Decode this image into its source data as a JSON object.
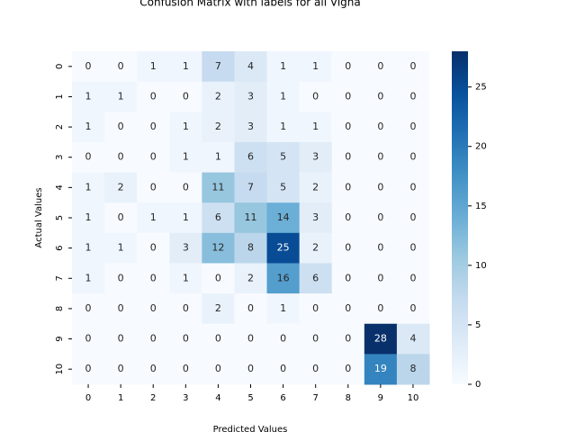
{
  "chart_data": {
    "type": "heatmap",
    "title": "Confusion Matrix with labels for all Vigna",
    "x_label": "Predicted Values",
    "y_label": "Actual Values",
    "x_categories": [
      "0",
      "1",
      "2",
      "3",
      "4",
      "5",
      "6",
      "7",
      "8",
      "9",
      "10"
    ],
    "y_categories": [
      "0",
      "1",
      "2",
      "3",
      "4",
      "5",
      "6",
      "7",
      "8",
      "9",
      "10"
    ],
    "values": [
      [
        0,
        0,
        1,
        1,
        7,
        4,
        1,
        1,
        0,
        0,
        0
      ],
      [
        1,
        1,
        0,
        0,
        2,
        3,
        1,
        0,
        0,
        0,
        0
      ],
      [
        1,
        0,
        0,
        1,
        2,
        3,
        1,
        1,
        0,
        0,
        0
      ],
      [
        0,
        0,
        0,
        1,
        1,
        6,
        5,
        3,
        0,
        0,
        0
      ],
      [
        1,
        2,
        0,
        0,
        11,
        7,
        5,
        2,
        0,
        0,
        0
      ],
      [
        1,
        0,
        1,
        1,
        6,
        11,
        14,
        3,
        0,
        0,
        0
      ],
      [
        1,
        1,
        0,
        3,
        12,
        8,
        25,
        2,
        0,
        0,
        0
      ],
      [
        1,
        0,
        0,
        1,
        0,
        2,
        16,
        6,
        0,
        0,
        0
      ],
      [
        0,
        0,
        0,
        0,
        2,
        0,
        1,
        0,
        0,
        0,
        0
      ],
      [
        0,
        0,
        0,
        0,
        0,
        0,
        0,
        0,
        0,
        28,
        4
      ],
      [
        0,
        0,
        0,
        0,
        0,
        0,
        0,
        0,
        0,
        19,
        8
      ]
    ],
    "colormap": "Blues",
    "clim": [
      0,
      28
    ],
    "cticks": [
      0,
      5,
      10,
      15,
      20,
      25
    ]
  }
}
